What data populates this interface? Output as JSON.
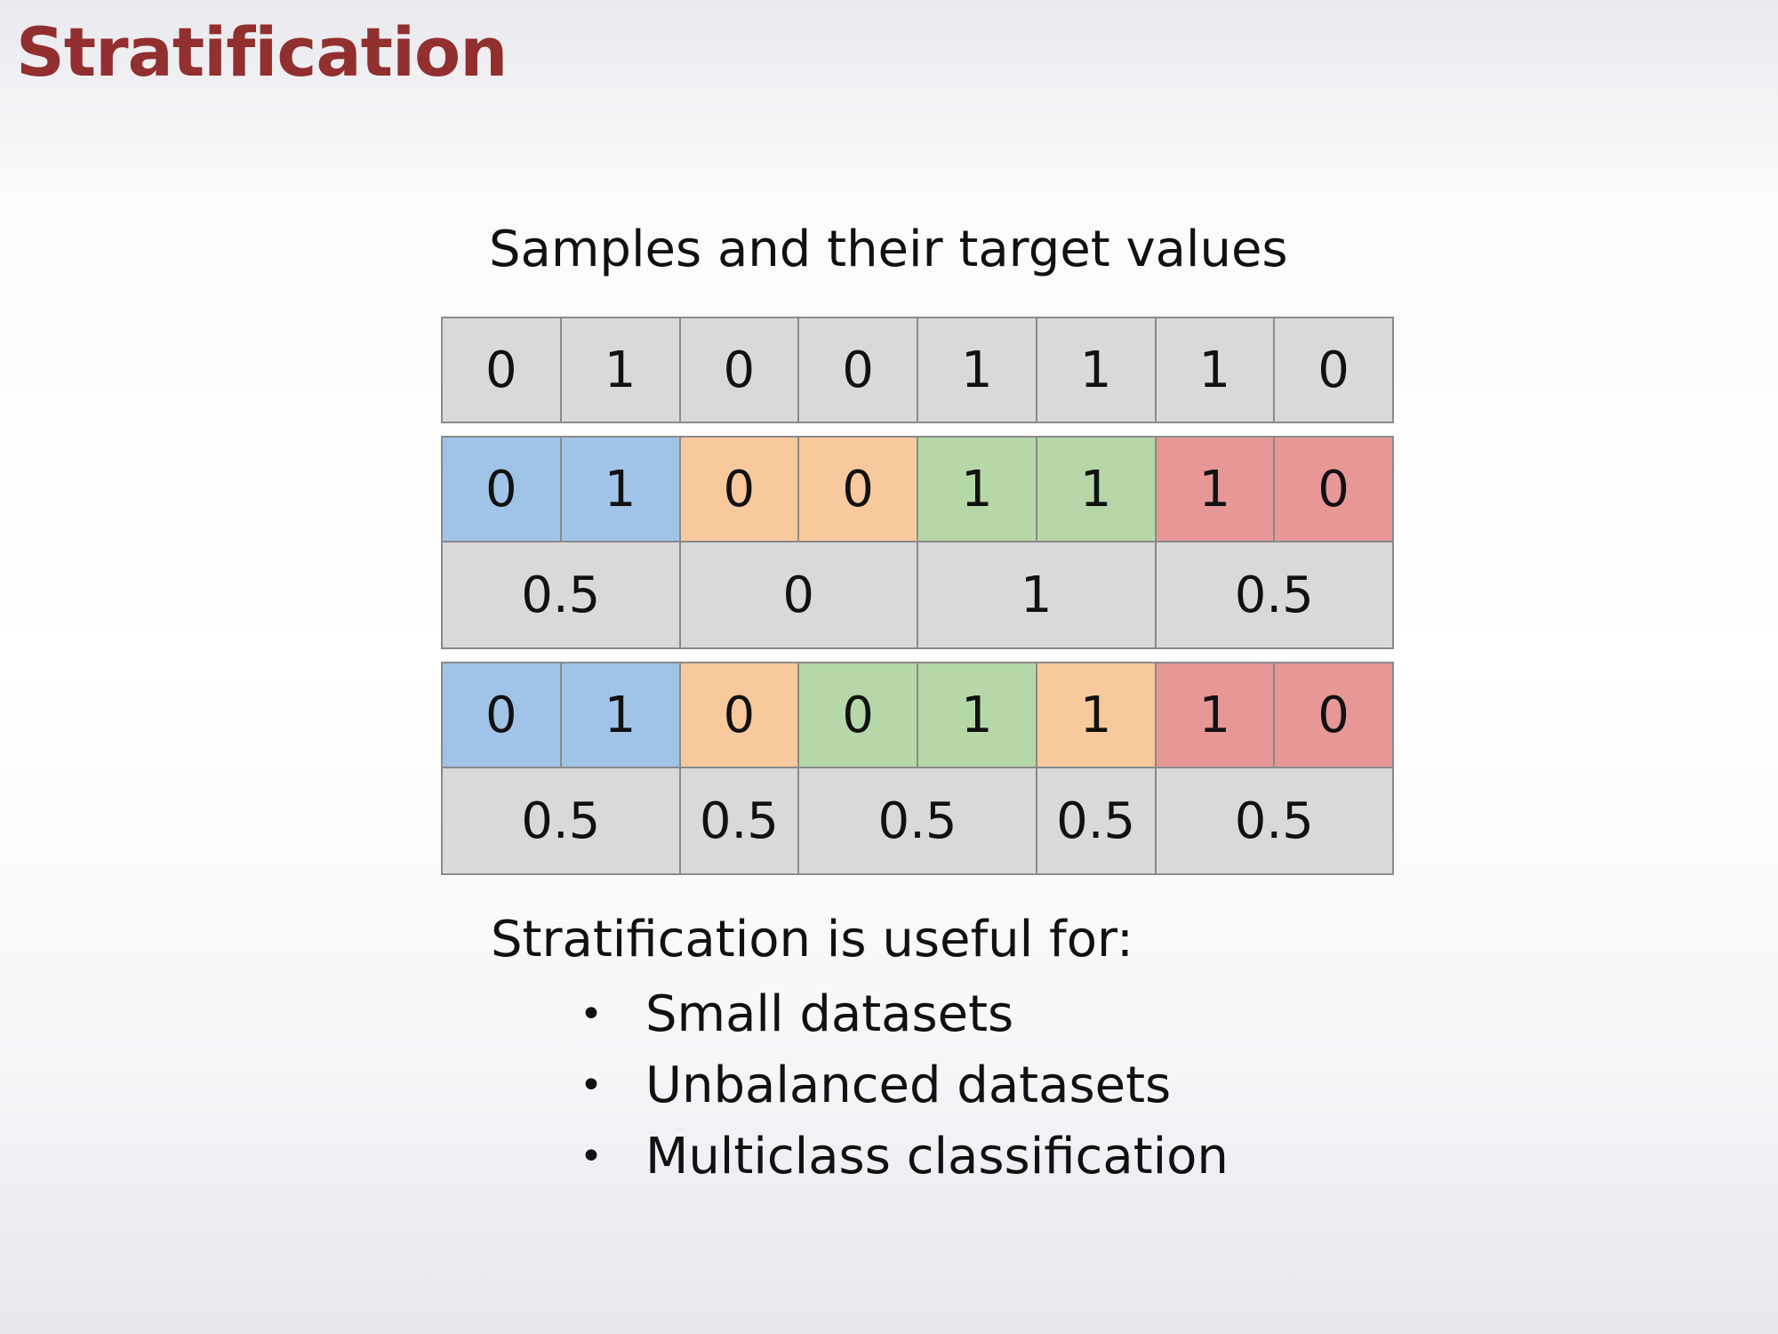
{
  "title": "Stratification",
  "heading": "Samples and their target values",
  "samples_row": [
    "0",
    "1",
    "0",
    "0",
    "1",
    "1",
    "1",
    "0"
  ],
  "plain_split": {
    "cells": [
      {
        "value": "0",
        "group": "blue"
      },
      {
        "value": "1",
        "group": "blue"
      },
      {
        "value": "0",
        "group": "orange"
      },
      {
        "value": "0",
        "group": "orange"
      },
      {
        "value": "1",
        "group": "green"
      },
      {
        "value": "1",
        "group": "green"
      },
      {
        "value": "1",
        "group": "red"
      },
      {
        "value": "0",
        "group": "red"
      }
    ],
    "means": [
      {
        "value": "0.5",
        "span": 2
      },
      {
        "value": "0",
        "span": 2
      },
      {
        "value": "1",
        "span": 2
      },
      {
        "value": "0.5",
        "span": 2
      }
    ]
  },
  "stratified_split": {
    "cells": [
      {
        "value": "0",
        "group": "blue"
      },
      {
        "value": "1",
        "group": "blue"
      },
      {
        "value": "0",
        "group": "orange"
      },
      {
        "value": "0",
        "group": "green"
      },
      {
        "value": "1",
        "group": "green"
      },
      {
        "value": "1",
        "group": "orange"
      },
      {
        "value": "1",
        "group": "red"
      },
      {
        "value": "0",
        "group": "red"
      }
    ],
    "means": [
      {
        "value": "0.5",
        "span": 2
      },
      {
        "value": "0.5",
        "span": 1
      },
      {
        "value": "0.5",
        "span": 2
      },
      {
        "value": "0.5",
        "span": 1
      },
      {
        "value": "0.5",
        "span": 2
      }
    ]
  },
  "note": "Stratification is useful for:",
  "uses": [
    "Small datasets",
    "Unbalanced datasets",
    "Multiclass classification"
  ],
  "bullet": "•",
  "colors": {
    "blue": "#9fc4e8",
    "orange": "#f8c99c",
    "green": "#b6d8a8",
    "red": "#e89797",
    "grey": "#d9d9d9",
    "title": "#922f2f"
  }
}
